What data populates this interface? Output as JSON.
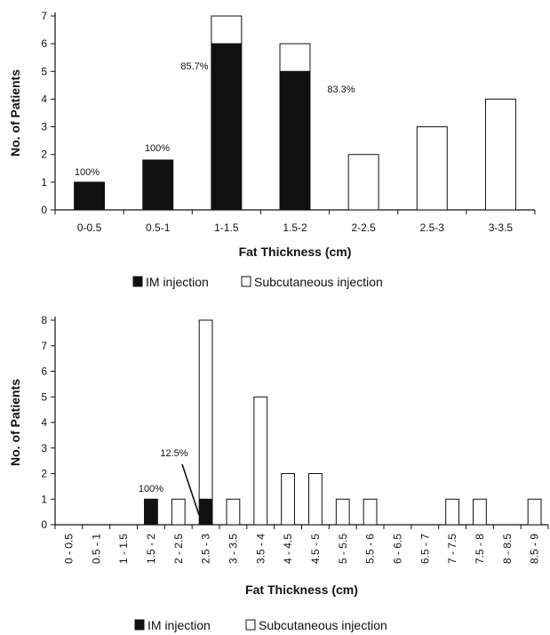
{
  "chart_data": [
    {
      "type": "bar",
      "title": "",
      "xlabel": "Fat Thickness (cm)",
      "ylabel": "No. of Patients",
      "ylim": [
        0,
        7
      ],
      "yticks": [
        "0",
        "1",
        "2",
        "3",
        "4",
        "5",
        "6",
        "7"
      ],
      "categories": [
        "0-0.5",
        "0.5-1",
        "1-1.5",
        "1.5-2",
        "2-2.5",
        "2.5-3",
        "3-3.5"
      ],
      "series": [
        {
          "name": "IM injection",
          "values": [
            1,
            1.8,
            6,
            5,
            0,
            0,
            0
          ]
        },
        {
          "name": "Subcutaneous injection",
          "values": [
            0,
            0,
            1,
            1,
            2,
            3,
            4
          ]
        }
      ],
      "annotations": [
        {
          "text": "100%",
          "category": "0-0.5"
        },
        {
          "text": "100%",
          "category": "0.5-1"
        },
        {
          "text": "85.7%",
          "category": "1-1.5"
        },
        {
          "text": "83.3%",
          "category": "1.5-2"
        }
      ],
      "legend": {
        "placement": "bottom",
        "items": [
          "IM injection",
          "Subcutaneous injection"
        ]
      },
      "stacked": true,
      "grid": false
    },
    {
      "type": "bar",
      "title": "",
      "xlabel": "Fat Thickness (cm)",
      "ylabel": "No. of Patients",
      "ylim": [
        0,
        8
      ],
      "yticks": [
        "0",
        "1",
        "2",
        "3",
        "4",
        "5",
        "6",
        "7",
        "8"
      ],
      "categories": [
        "0 - 0.5",
        "0.5 - 1",
        "1 - 1.5",
        "1.5 - 2",
        "2 - 2.5",
        "2.5 - 3",
        "3 - 3.5",
        "3.5 - 4",
        "4 - 4.5",
        "4.5 - 5",
        "5 - 5.5",
        "5.5 - 6",
        "6 - 6.5",
        "6.5 - 7",
        "7 - 7.5",
        "7.5 - 8",
        "8 - 8.5",
        "8.5 - 9"
      ],
      "series": [
        {
          "name": "IM injection",
          "values": [
            0,
            0,
            0,
            1,
            0,
            1,
            0,
            0,
            0,
            0,
            0,
            0,
            0,
            0,
            0,
            0,
            0,
            0
          ]
        },
        {
          "name": "Subcutaneous injection",
          "values": [
            0,
            0,
            0,
            0,
            1,
            7,
            1,
            5,
            2,
            2,
            1,
            1,
            0,
            0,
            1,
            1,
            0,
            1
          ]
        }
      ],
      "annotations": [
        {
          "text": "100%",
          "category": "1.5 - 2"
        },
        {
          "text": "12.5%",
          "category": "2.5 - 3"
        }
      ],
      "legend": {
        "placement": "bottom",
        "items": [
          "IM injection",
          "Subcutaneous injection"
        ]
      },
      "stacked": true,
      "grid": false
    }
  ],
  "colors": {
    "im": "#111111",
    "subq": "#ffffff",
    "stroke": "#111111"
  }
}
